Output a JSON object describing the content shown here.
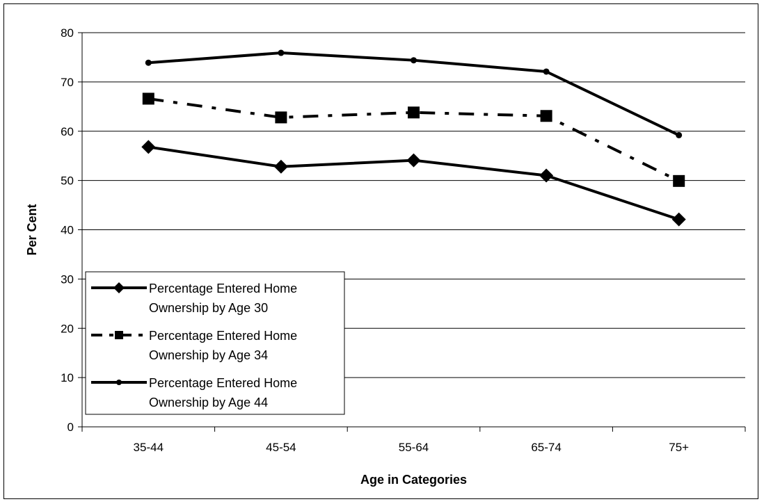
{
  "chart_data": {
    "type": "line",
    "title": "",
    "xlabel": "Age in Categories",
    "ylabel": "Per Cent",
    "categories": [
      "35-44",
      "45-54",
      "55-64",
      "65-74",
      "75+"
    ],
    "ylim": [
      0,
      80
    ],
    "yticks": [
      0,
      10,
      20,
      30,
      40,
      50,
      60,
      70,
      80
    ],
    "grid": "horizontal",
    "legend_position": "bottom-left",
    "series": [
      {
        "name": "Percentage Entered Home Ownership by Age 30",
        "legend_lines": [
          "Percentage Entered Home",
          "Ownership by Age 30"
        ],
        "values": [
          56.8,
          52.8,
          54.1,
          51.0,
          42.1
        ],
        "marker": "diamond",
        "line_style": "solid",
        "color": "#000000"
      },
      {
        "name": "Percentage Entered Home Ownership by Age 34",
        "legend_lines": [
          "Percentage Entered Home",
          "Ownership by Age 34"
        ],
        "values": [
          66.6,
          62.8,
          63.8,
          63.1,
          49.9
        ],
        "marker": "square",
        "line_style": "dash-dot",
        "color": "#000000"
      },
      {
        "name": "Percentage Entered Home Ownership by Age 44",
        "legend_lines": [
          "Percentage Entered Home",
          "Ownership by Age 44"
        ],
        "values": [
          73.9,
          75.9,
          74.4,
          72.1,
          59.2
        ],
        "marker": "circle",
        "line_style": "solid",
        "color": "#000000"
      }
    ]
  }
}
